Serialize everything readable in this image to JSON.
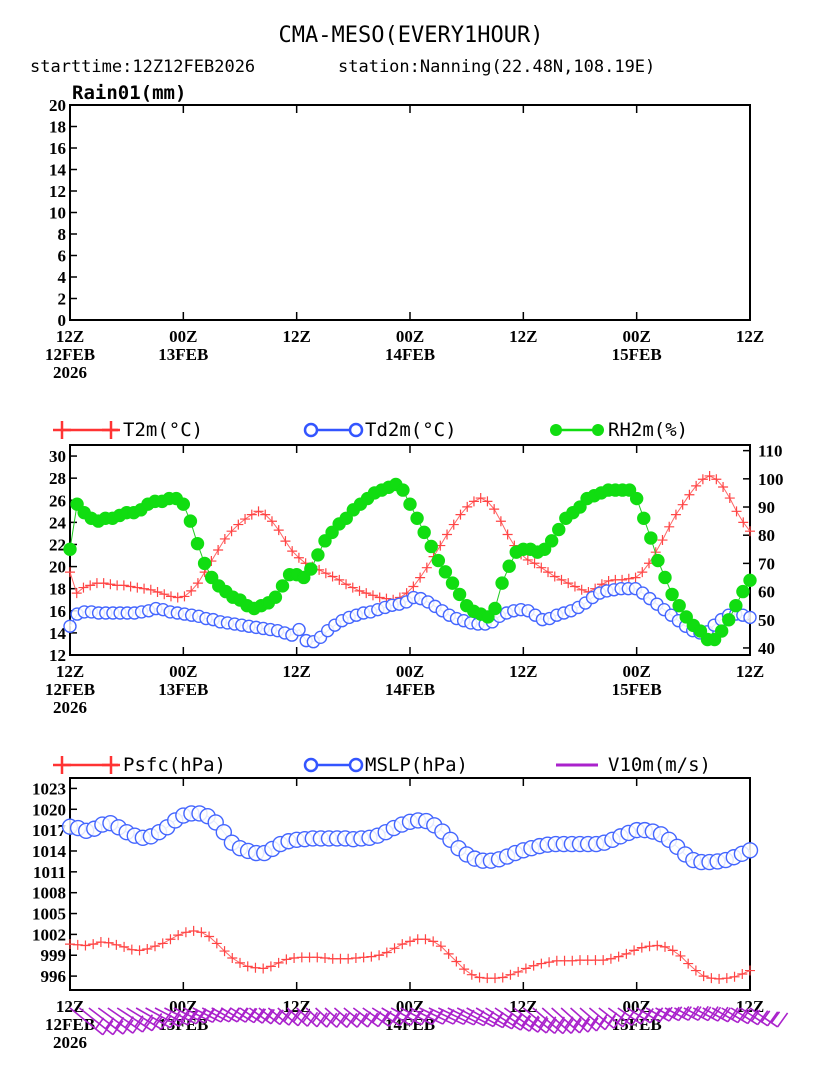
{
  "title": "CMA-MESO(EVERY1HOUR)",
  "subtitle": {
    "starttime": "starttime:12Z12FEB2026",
    "station": "station:Nanning(22.48N,108.19E)"
  },
  "colors": {
    "t2m": "#ff3333",
    "td2m": "#3355ff",
    "rh2m": "#11dd11",
    "psfc": "#ff3333",
    "mslp": "#3355ff",
    "v10m": "#aa22cc"
  },
  "chart_data": [
    {
      "type": "bar",
      "title": "Rain01(mm)",
      "ylim": [
        0,
        20
      ],
      "yticks": [
        "0",
        "2",
        "4",
        "6",
        "8",
        "10",
        "12",
        "14",
        "16",
        "18",
        "20"
      ],
      "xlim_hours": [
        0,
        72
      ],
      "xticks": [
        {
          "l1": "12Z",
          "l2": "12FEB",
          "l3": "2026"
        },
        {
          "l1": "00Z",
          "l2": "13FEB",
          "l3": ""
        },
        {
          "l1": "12Z",
          "l2": "",
          "l3": ""
        },
        {
          "l1": "00Z",
          "l2": "14FEB",
          "l3": ""
        },
        {
          "l1": "12Z",
          "l2": "",
          "l3": ""
        },
        {
          "l1": "00Z",
          "l2": "15FEB",
          "l3": ""
        },
        {
          "l1": "12Z",
          "l2": "",
          "l3": ""
        }
      ],
      "values": []
    },
    {
      "type": "line",
      "legend": {
        "t2m": "T2m(°C)",
        "td2m": "Td2m(°C)",
        "rh2m": "RH2m(%)"
      },
      "ylim_left": [
        12,
        31
      ],
      "yticks_left": [
        "12",
        "14",
        "16",
        "18",
        "20",
        "22",
        "24",
        "26",
        "28",
        "30"
      ],
      "ylim_right": [
        37.5,
        112
      ],
      "yticks_right": [
        "40",
        "50",
        "60",
        "70",
        "80",
        "90",
        "100",
        "110"
      ],
      "x_hours_step": 1,
      "series": [
        {
          "name": "T2m",
          "axis": "left",
          "values": [
            19.5,
            17.6,
            18.1,
            18.3,
            18.5,
            18.5,
            18.4,
            18.3,
            18.3,
            18.2,
            18.1,
            18.0,
            17.9,
            17.7,
            17.5,
            17.3,
            17.2,
            17.3,
            17.8,
            18.5,
            19.5,
            20.5,
            21.5,
            22.5,
            23.2,
            23.8,
            24.3,
            24.7,
            25.0,
            24.7,
            24.1,
            23.3,
            22.3,
            21.4,
            20.8,
            20.3,
            20.0,
            19.7,
            19.4,
            19.1,
            18.8,
            18.4,
            18.1,
            17.8,
            17.6,
            17.4,
            17.2,
            17.1,
            17.0,
            17.2,
            17.6,
            18.2,
            19.0,
            19.9,
            20.9,
            21.9,
            22.9,
            23.8,
            24.7,
            25.4,
            25.9,
            26.2,
            25.9,
            25.2,
            24.1,
            22.9,
            21.9,
            21.1,
            20.6,
            20.3,
            19.9,
            19.5,
            19.1,
            18.8,
            18.5,
            18.2,
            17.9,
            17.7,
            18.0,
            18.4,
            18.7,
            18.8,
            18.8,
            18.9,
            19.0,
            19.5,
            20.3,
            21.3,
            22.4,
            23.6,
            24.7,
            25.6,
            26.5,
            27.3,
            27.9,
            28.2,
            27.9,
            27.2,
            26.2,
            25.0,
            24.0,
            23.2
          ]
        },
        {
          "name": "Td2m",
          "axis": "left",
          "values": [
            14.6,
            15.7,
            15.9,
            15.9,
            15.8,
            15.8,
            15.8,
            15.8,
            15.8,
            15.8,
            15.9,
            16.0,
            16.2,
            16.1,
            15.9,
            15.8,
            15.7,
            15.6,
            15.5,
            15.3,
            15.2,
            15.0,
            14.9,
            14.8,
            14.7,
            14.6,
            14.5,
            14.4,
            14.3,
            14.2,
            14.0,
            13.8,
            14.3,
            13.3,
            13.2,
            13.6,
            14.2,
            14.7,
            15.1,
            15.4,
            15.6,
            15.8,
            15.9,
            16.1,
            16.3,
            16.5,
            16.6,
            16.8,
            17.2,
            17.1,
            16.8,
            16.4,
            16.0,
            15.6,
            15.3,
            15.1,
            14.9,
            14.8,
            14.8,
            15.0,
            15.5,
            15.8,
            16.0,
            16.1,
            16.0,
            15.6,
            15.2,
            15.3,
            15.6,
            15.8,
            16.0,
            16.3,
            16.7,
            17.2,
            17.6,
            17.8,
            17.9,
            18.0,
            18.0,
            18.0,
            17.6,
            17.1,
            16.6,
            16.1,
            15.6,
            15.1,
            14.6,
            14.2,
            14.0,
            14.1,
            14.7,
            15.2,
            15.6,
            15.7,
            15.6,
            15.4
          ]
        },
        {
          "name": "RH2m",
          "axis": "right",
          "values": [
            75,
            91,
            88,
            86,
            85,
            86,
            86,
            87,
            88,
            88,
            89,
            91,
            92,
            92,
            93,
            93,
            91,
            85,
            77,
            70,
            65,
            62,
            60,
            58,
            57,
            55,
            54,
            55,
            56,
            58,
            62,
            66,
            66,
            65,
            68,
            73,
            78,
            81,
            84,
            86,
            89,
            91,
            93,
            95,
            96,
            97,
            98,
            96,
            91,
            86,
            81,
            76,
            71,
            67,
            63,
            59,
            55,
            53,
            52,
            51,
            54,
            63,
            69,
            74,
            75,
            75,
            74,
            75,
            78,
            82,
            86,
            88,
            90,
            93,
            94,
            95,
            96,
            96,
            96,
            96,
            93,
            86,
            79,
            71,
            65,
            59,
            55,
            51,
            48,
            46,
            43,
            43,
            46,
            50,
            55,
            60,
            64
          ]
        }
      ]
    },
    {
      "type": "line",
      "legend": {
        "psfc": "Psfc(hPa)",
        "mslp": "MSLP(hPa)",
        "v10m": "V10m(m/s)"
      },
      "ylim": [
        994,
        1024.5
      ],
      "yticks": [
        "996",
        "999",
        "1002",
        "1005",
        "1008",
        "1011",
        "1014",
        "1017",
        "1020",
        "1023"
      ],
      "x_hours_step": 1,
      "series": [
        {
          "name": "Psfc",
          "values": [
            1000.6,
            1000.5,
            1000.4,
            1000.6,
            1000.9,
            1000.8,
            1000.5,
            1000.2,
            999.8,
            999.7,
            999.9,
            1000.3,
            1000.7,
            1001.3,
            1001.9,
            1002.3,
            1002.5,
            1002.3,
            1001.7,
            1000.7,
            999.6,
            998.6,
            997.9,
            997.4,
            997.2,
            997.1,
            997.4,
            997.9,
            998.4,
            998.6,
            998.7,
            998.7,
            998.7,
            998.6,
            998.5,
            998.5,
            998.5,
            998.6,
            998.7,
            998.8,
            999.0,
            999.4,
            1000.0,
            1000.6,
            1001.0,
            1001.3,
            1001.3,
            1001.0,
            1000.3,
            999.2,
            998.1,
            997.0,
            996.2,
            995.8,
            995.7,
            995.7,
            995.8,
            996.2,
            996.6,
            997.1,
            997.5,
            997.8,
            998.0,
            998.2,
            998.2,
            998.2,
            998.3,
            998.3,
            998.3,
            998.3,
            998.5,
            998.8,
            999.2,
            999.7,
            1000.1,
            1000.3,
            1000.4,
            1000.2,
            999.7,
            998.9,
            997.8,
            996.8,
            996.0,
            995.7,
            995.6,
            995.7,
            995.9,
            996.3,
            996.8
          ]
        },
        {
          "name": "MSLP",
          "values": [
            1017.5,
            1017.3,
            1016.9,
            1017.2,
            1017.8,
            1018.0,
            1017.4,
            1016.7,
            1016.2,
            1015.9,
            1016.1,
            1016.7,
            1017.4,
            1018.4,
            1019.1,
            1019.4,
            1019.4,
            1019.0,
            1018.1,
            1016.7,
            1015.2,
            1014.4,
            1014.0,
            1013.7,
            1013.7,
            1014.3,
            1015.0,
            1015.4,
            1015.6,
            1015.7,
            1015.8,
            1015.8,
            1015.8,
            1015.8,
            1015.8,
            1015.7,
            1015.8,
            1015.9,
            1016.2,
            1016.7,
            1017.3,
            1017.8,
            1018.2,
            1018.4,
            1018.3,
            1017.7,
            1016.8,
            1015.6,
            1014.4,
            1013.5,
            1012.9,
            1012.6,
            1012.6,
            1012.8,
            1013.2,
            1013.7,
            1014.1,
            1014.4,
            1014.7,
            1014.9,
            1015.0,
            1015.0,
            1015.0,
            1015.0,
            1015.0,
            1015.0,
            1015.2,
            1015.6,
            1016.1,
            1016.6,
            1017.0,
            1017.0,
            1016.8,
            1016.4,
            1015.6,
            1014.6,
            1013.5,
            1012.7,
            1012.4,
            1012.4,
            1012.5,
            1012.7,
            1013.1,
            1013.6,
            1014.1
          ]
        }
      ]
    }
  ]
}
